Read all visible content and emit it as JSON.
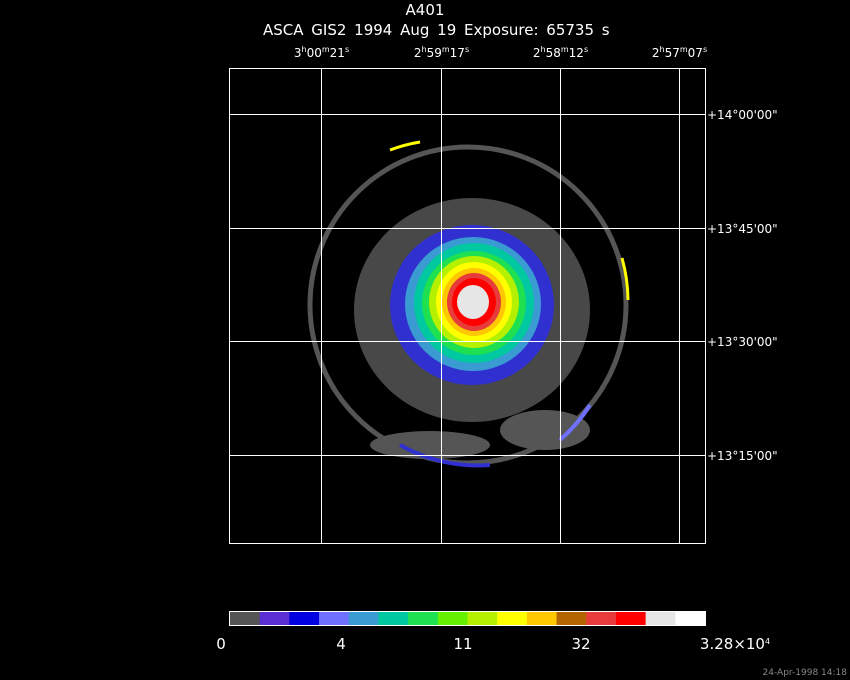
{
  "title": "A401",
  "subtitle": "ASCA GIS2   1994 Aug 19    Exposure: 65735 s",
  "ra_labels": [
    {
      "h": "3",
      "m": "00",
      "s": "21"
    },
    {
      "h": "2",
      "m": "59",
      "s": "17"
    },
    {
      "h": "2",
      "m": "58",
      "s": "12"
    },
    {
      "h": "2",
      "m": "57",
      "s": "07"
    }
  ],
  "dec_labels": [
    "+14°00'00\"",
    "+13°45'00\"",
    "+13°30'00\"",
    "+13°15'00\""
  ],
  "colorbar": {
    "colors": [
      "#555555",
      "#5a2ed2",
      "#0000e0",
      "#7070ff",
      "#3a9ad2",
      "#00c8a0",
      "#1ee050",
      "#64f000",
      "#b4f000",
      "#ffff00",
      "#ffc800",
      "#b46400",
      "#e63c3c",
      "#ff0000",
      "#e6e6e6",
      "#ffffff"
    ],
    "labels": [
      {
        "text": "0"
      },
      {
        "text": "4"
      },
      {
        "text": "11"
      },
      {
        "text": "32"
      },
      {
        "text": "3.28×10",
        "sup": "4"
      }
    ]
  },
  "timestamp": "24-Apr-1998 14:18"
}
